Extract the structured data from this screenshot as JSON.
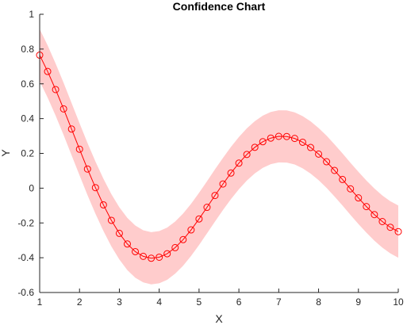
{
  "chart_data": {
    "type": "line",
    "title": "Confidence Chart",
    "xlabel": "X",
    "ylabel": "Y",
    "xlim": [
      1,
      10
    ],
    "ylim": [
      -0.6,
      1
    ],
    "x_ticks": [
      "1",
      "2",
      "3",
      "4",
      "5",
      "6",
      "7",
      "8",
      "9",
      "10"
    ],
    "y_ticks": [
      "-0.6",
      "-0.4",
      "-0.2",
      "0",
      "0.2",
      "0.4",
      "0.6",
      "0.8",
      "1"
    ],
    "grid": false,
    "colors": {
      "line": "#ff0000",
      "band": "#ffcccc",
      "axis": "#262626"
    },
    "series": [
      {
        "x": [
          1.0,
          1.2,
          1.4,
          1.6,
          1.8,
          2.0,
          2.2,
          2.4,
          2.6,
          2.8,
          3.0,
          3.2,
          3.4,
          3.6,
          3.8,
          4.0,
          4.2,
          4.4,
          4.6,
          4.8,
          5.0,
          5.2,
          5.4,
          5.6,
          5.8,
          6.0,
          6.2,
          6.4,
          6.6,
          6.8,
          7.0,
          7.2,
          7.4,
          7.6,
          7.8,
          8.0,
          8.2,
          8.4,
          8.6,
          8.8,
          9.0,
          9.2,
          9.4,
          9.6,
          9.8,
          10.0
        ],
        "y": [
          0.765,
          0.671,
          0.567,
          0.456,
          0.34,
          0.224,
          0.11,
          0.003,
          -0.096,
          -0.185,
          -0.26,
          -0.321,
          -0.365,
          -0.392,
          -0.403,
          -0.397,
          -0.377,
          -0.342,
          -0.296,
          -0.24,
          -0.177,
          -0.11,
          -0.042,
          0.024,
          0.087,
          0.144,
          0.194,
          0.235,
          0.267,
          0.288,
          0.298,
          0.297,
          0.286,
          0.264,
          0.234,
          0.196,
          0.152,
          0.102,
          0.05,
          -0.004,
          -0.056,
          -0.106,
          -0.152,
          -0.192,
          -0.225,
          -0.25
        ],
        "lower": [
          0.615,
          0.521,
          0.417,
          0.306,
          0.19,
          0.074,
          -0.04,
          -0.147,
          -0.246,
          -0.335,
          -0.41,
          -0.471,
          -0.515,
          -0.542,
          -0.553,
          -0.547,
          -0.527,
          -0.492,
          -0.446,
          -0.39,
          -0.327,
          -0.26,
          -0.192,
          -0.126,
          -0.063,
          -0.006,
          0.044,
          0.085,
          0.117,
          0.138,
          0.148,
          0.147,
          0.136,
          0.114,
          0.084,
          0.046,
          0.002,
          -0.048,
          -0.1,
          -0.154,
          -0.206,
          -0.256,
          -0.302,
          -0.342,
          -0.375,
          -0.4
        ],
        "upper": [
          0.915,
          0.821,
          0.717,
          0.606,
          0.49,
          0.374,
          0.26,
          0.153,
          0.054,
          -0.035,
          -0.11,
          -0.171,
          -0.215,
          -0.242,
          -0.253,
          -0.247,
          -0.227,
          -0.192,
          -0.146,
          -0.09,
          -0.027,
          0.04,
          0.108,
          0.174,
          0.237,
          0.294,
          0.344,
          0.385,
          0.417,
          0.438,
          0.448,
          0.447,
          0.436,
          0.414,
          0.384,
          0.346,
          0.302,
          0.252,
          0.2,
          0.146,
          0.094,
          0.044,
          -0.002,
          -0.042,
          -0.075,
          -0.1
        ]
      }
    ]
  }
}
